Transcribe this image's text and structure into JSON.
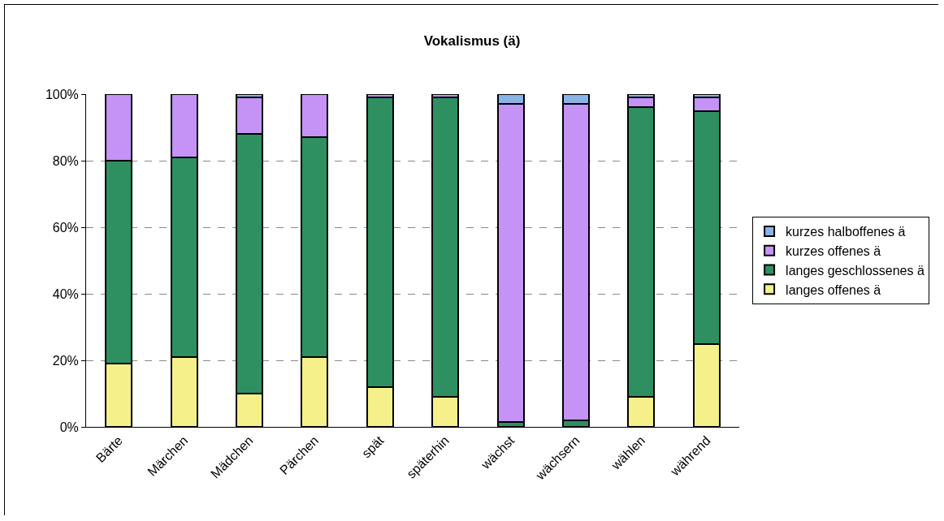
{
  "chart_data": {
    "type": "bar",
    "title": "Vokalismus (ä)",
    "stacked": true,
    "categories": [
      "Bärte",
      "Märchen",
      "Mädchen",
      "Pärchen",
      "spät",
      "späterhin",
      "wächst",
      "wächsern",
      "wählen",
      "während"
    ],
    "series": [
      {
        "name": "langes offenes ä",
        "color": "#f5f08a",
        "values": [
          19,
          21,
          10,
          21,
          12,
          9,
          null,
          null,
          9,
          25
        ]
      },
      {
        "name": "langes geschlossenes ä",
        "color": "#2e9060",
        "values": [
          61,
          60,
          78,
          66,
          87,
          90,
          1.5,
          2,
          87,
          70
        ]
      },
      {
        "name": "kurzes offenes ä",
        "color": "#c493f5",
        "values": [
          20,
          19,
          11,
          13,
          1,
          1,
          95.5,
          95,
          3,
          4
        ]
      },
      {
        "name": "kurzes halboffenes ä",
        "color": "#8ab4e6",
        "values": [
          null,
          null,
          1,
          null,
          null,
          null,
          3,
          3,
          1,
          1
        ]
      }
    ],
    "ylim": [
      0,
      100
    ],
    "yticks": [
      {
        "value": 0,
        "label": "0%"
      },
      {
        "value": 20,
        "label": "20%"
      },
      {
        "value": 40,
        "label": "40%"
      },
      {
        "value": 60,
        "label": "60%"
      },
      {
        "value": 80,
        "label": "80%"
      },
      {
        "value": 100,
        "label": "100%"
      }
    ],
    "grid": "y",
    "legend": "right"
  }
}
